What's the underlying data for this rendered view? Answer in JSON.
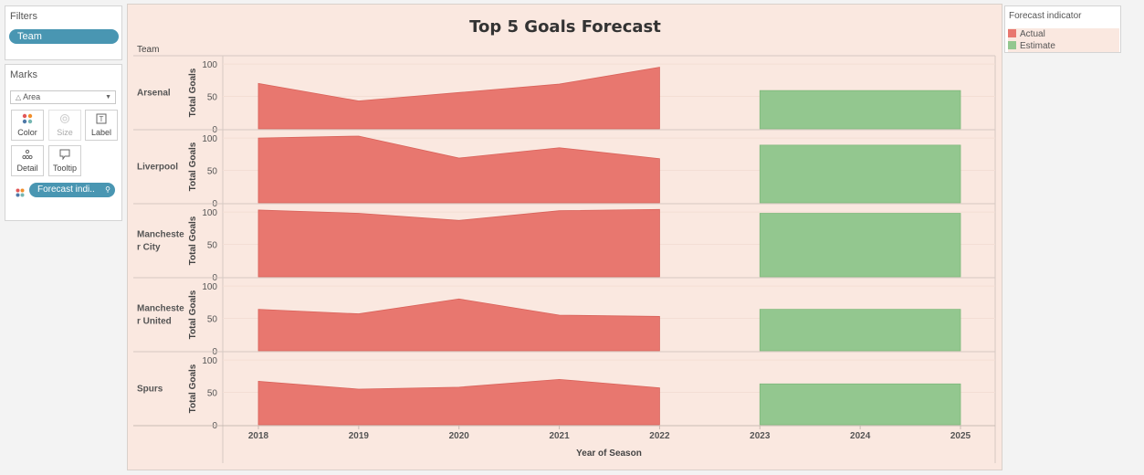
{
  "filters": {
    "title": "Filters",
    "pill": "Team"
  },
  "marks": {
    "title": "Marks",
    "mark_type": "Area",
    "buttons": [
      {
        "label": "Color",
        "icon": "color-dots-icon",
        "enabled": true
      },
      {
        "label": "Size",
        "icon": "size-icon",
        "enabled": false
      },
      {
        "label": "Label",
        "icon": "label-icon",
        "enabled": true
      },
      {
        "label": "Detail",
        "icon": "detail-icon",
        "enabled": true
      },
      {
        "label": "Tooltip",
        "icon": "tooltip-icon",
        "enabled": true
      }
    ],
    "color_pill": "Forecast indi.."
  },
  "legend": {
    "title": "Forecast indicator",
    "items": [
      {
        "label": "Actual",
        "color": "#e8776f"
      },
      {
        "label": "Estimate",
        "color": "#93c78f"
      }
    ]
  },
  "chart_data": {
    "type": "area",
    "title": "Top 5 Goals Forecast",
    "row_header": "Team",
    "xlabel": "Year of Season",
    "ylabel": "Total Goals",
    "x": [
      2018,
      2019,
      2020,
      2021,
      2022,
      2023,
      2024,
      2025
    ],
    "yticks": [
      0,
      50,
      100
    ],
    "ylim": [
      0,
      110
    ],
    "colors": {
      "Actual": "#e8776f",
      "Estimate": "#93c78f"
    },
    "teams": [
      {
        "name": "Arsenal",
        "actual": {
          "x": [
            2018,
            2019,
            2020,
            2021,
            2022
          ],
          "y": [
            70,
            43,
            56,
            69,
            95
          ]
        },
        "estimate": {
          "x": [
            2023,
            2025
          ],
          "y": [
            59,
            59
          ]
        }
      },
      {
        "name": "Liverpool",
        "actual": {
          "x": [
            2018,
            2019,
            2020,
            2021,
            2022
          ],
          "y": [
            100,
            103,
            69,
            85,
            68
          ]
        },
        "estimate": {
          "x": [
            2023,
            2025
          ],
          "y": [
            89,
            89
          ]
        }
      },
      {
        "name": "Manchester City",
        "actual": {
          "x": [
            2018,
            2019,
            2020,
            2021,
            2022
          ],
          "y": [
            103,
            98,
            87,
            102,
            104
          ]
        },
        "estimate": {
          "x": [
            2023,
            2025
          ],
          "y": [
            98,
            98
          ]
        }
      },
      {
        "name": "Manchester United",
        "actual": {
          "x": [
            2018,
            2019,
            2020,
            2021,
            2022
          ],
          "y": [
            64,
            57,
            80,
            55,
            53
          ]
        },
        "estimate": {
          "x": [
            2023,
            2025
          ],
          "y": [
            64,
            64
          ]
        }
      },
      {
        "name": "Spurs",
        "actual": {
          "x": [
            2018,
            2019,
            2020,
            2021,
            2022
          ],
          "y": [
            67,
            55,
            58,
            70,
            57
          ]
        },
        "estimate": {
          "x": [
            2023,
            2025
          ],
          "y": [
            63,
            63
          ]
        }
      }
    ]
  }
}
